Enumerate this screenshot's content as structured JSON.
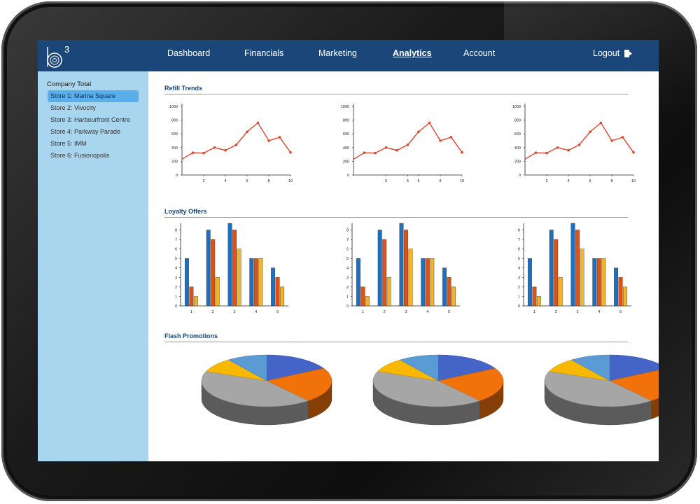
{
  "nav": {
    "logo_text": "b",
    "logo_superscript": "3",
    "items": [
      {
        "label": "Dashboard",
        "active": false
      },
      {
        "label": "Financials",
        "active": false
      },
      {
        "label": "Marketing",
        "active": false
      },
      {
        "label": "Analytics",
        "active": true
      },
      {
        "label": "Account",
        "active": false
      }
    ],
    "logout_label": "Logout"
  },
  "sidebar": {
    "title": "Company Total",
    "stores": [
      {
        "label": "Store 1: Marina Square",
        "selected": true
      },
      {
        "label": "Store 2: Vivocity",
        "selected": false
      },
      {
        "label": "Store 3: Harbourfront Centre",
        "selected": false
      },
      {
        "label": "Store 4: Parkway Parade",
        "selected": false
      },
      {
        "label": "Store 5: IMM",
        "selected": false
      },
      {
        "label": "Store 6: Fusionopolis",
        "selected": false
      }
    ]
  },
  "sections": {
    "refill": "Refill Trends",
    "loyalty": "Loyalty Offers",
    "flash": "Flash Promotions"
  },
  "colors": {
    "line": "#e0452b",
    "bar_series": [
      "#1f6fbf",
      "#dd5317",
      "#f0b32a"
    ],
    "pie": [
      "#4564c8",
      "#f2720a",
      "#a6a6a6",
      "#f9b800",
      "#5b9bd5"
    ]
  },
  "chart_data": [
    {
      "type": "line",
      "section": "Refill Trends",
      "x": [
        0,
        1,
        2,
        3,
        4,
        5,
        6,
        7,
        8,
        9,
        10
      ],
      "series": [
        {
          "values": [
            230,
            325,
            320,
            400,
            360,
            440,
            630,
            760,
            500,
            550,
            330
          ]
        }
      ],
      "xticks": [
        2,
        4,
        6,
        8,
        10
      ],
      "yticks": [
        0,
        200,
        400,
        600,
        800,
        1000
      ],
      "xlim": [
        0,
        10
      ],
      "ylim": [
        0,
        1000
      ]
    },
    {
      "type": "line",
      "section": "Refill Trends",
      "x": [
        0,
        1,
        2,
        3,
        4,
        5,
        6,
        7,
        8,
        9,
        10
      ],
      "series": [
        {
          "values": [
            230,
            325,
            320,
            400,
            360,
            440,
            630,
            760,
            500,
            550,
            330
          ]
        }
      ],
      "xticks": [
        3,
        5,
        6,
        8,
        10
      ],
      "yticks": [
        0,
        200,
        400,
        600,
        800,
        1000
      ],
      "xlim": [
        0,
        10
      ],
      "ylim": [
        0,
        1000
      ]
    },
    {
      "type": "line",
      "section": "Refill Trends",
      "x": [
        0,
        1,
        2,
        3,
        4,
        5,
        6,
        7,
        8,
        9,
        10
      ],
      "series": [
        {
          "values": [
            230,
            325,
            320,
            400,
            360,
            440,
            630,
            760,
            500,
            550,
            330
          ]
        }
      ],
      "xticks": [
        2,
        4,
        6,
        8,
        10
      ],
      "yticks": [
        0,
        200,
        400,
        600,
        800,
        1000
      ],
      "xlim": [
        0,
        10
      ],
      "ylim": [
        0,
        1000
      ]
    },
    {
      "type": "bar",
      "section": "Loyalty Offers",
      "categories": [
        "1",
        "2",
        "3",
        "4",
        "5"
      ],
      "series": [
        {
          "values": [
            5,
            8,
            8.7,
            5,
            4
          ]
        },
        {
          "values": [
            2,
            7,
            8,
            5,
            3
          ]
        },
        {
          "values": [
            1,
            3,
            6,
            5,
            2
          ]
        }
      ],
      "yticks": [
        0,
        1,
        2,
        3,
        4,
        5,
        6,
        7,
        8
      ],
      "ylim": [
        0,
        8.7
      ]
    },
    {
      "type": "bar",
      "section": "Loyalty Offers",
      "categories": [
        "1",
        "2",
        "3",
        "4",
        "5"
      ],
      "series": [
        {
          "values": [
            5,
            8,
            8.7,
            5,
            4
          ]
        },
        {
          "values": [
            2,
            7,
            8,
            5,
            3
          ]
        },
        {
          "values": [
            1,
            3,
            6,
            5,
            2
          ]
        }
      ],
      "yticks": [
        0,
        1,
        2,
        3,
        4,
        5,
        6,
        7,
        8
      ],
      "ylim": [
        0,
        8.7
      ]
    },
    {
      "type": "bar",
      "section": "Loyalty Offers",
      "categories": [
        "1",
        "2",
        "3",
        "4",
        "5"
      ],
      "series": [
        {
          "values": [
            5,
            8,
            8.7,
            5,
            4
          ]
        },
        {
          "values": [
            2,
            7,
            8,
            5,
            3
          ]
        },
        {
          "values": [
            1,
            3,
            6,
            5,
            2
          ]
        }
      ],
      "yticks": [
        0,
        1,
        2,
        3,
        4,
        5,
        6,
        7,
        8
      ],
      "ylim": [
        0,
        8.7
      ]
    },
    {
      "type": "pie",
      "section": "Flash Promotions",
      "values": [
        17,
        22,
        42,
        9,
        10
      ]
    },
    {
      "type": "pie",
      "section": "Flash Promotions",
      "values": [
        17,
        22,
        42,
        9,
        10
      ]
    },
    {
      "type": "pie",
      "section": "Flash Promotions",
      "values": [
        17,
        22,
        42,
        9,
        10
      ]
    }
  ]
}
